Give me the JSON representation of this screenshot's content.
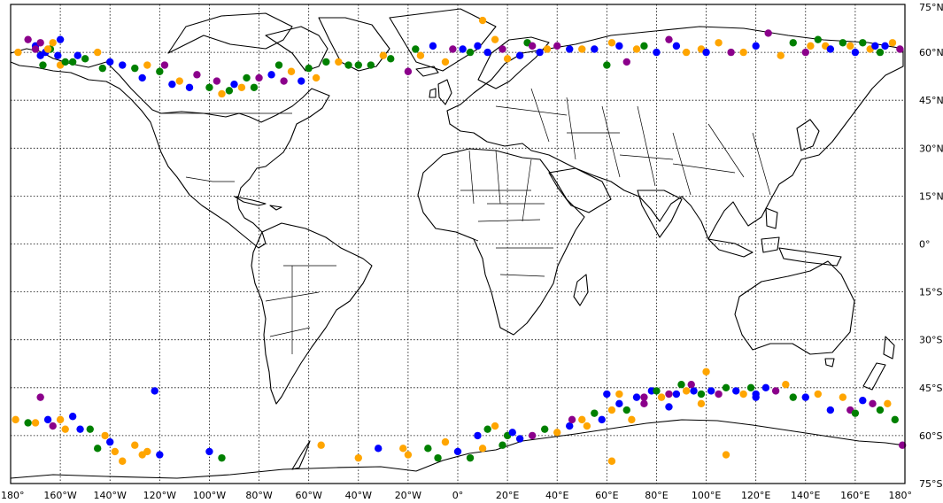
{
  "map": {
    "projection": "equirectangular",
    "lon_range": [
      -180,
      180
    ],
    "lat_range": [
      -75,
      75
    ],
    "x_ticks": [
      {
        "lon": -180,
        "label": "180°"
      },
      {
        "lon": -160,
        "label": "160°W"
      },
      {
        "lon": -140,
        "label": "140°W"
      },
      {
        "lon": -120,
        "label": "120°W"
      },
      {
        "lon": -100,
        "label": "100°W"
      },
      {
        "lon": -80,
        "label": "80°W"
      },
      {
        "lon": -60,
        "label": "60°W"
      },
      {
        "lon": -40,
        "label": "40°W"
      },
      {
        "lon": -20,
        "label": "20°W"
      },
      {
        "lon": 0,
        "label": "0°"
      },
      {
        "lon": 20,
        "label": "20°E"
      },
      {
        "lon": 40,
        "label": "40°E"
      },
      {
        "lon": 60,
        "label": "60°E"
      },
      {
        "lon": 80,
        "label": "80°E"
      },
      {
        "lon": 100,
        "label": "100°E"
      },
      {
        "lon": 120,
        "label": "120°E"
      },
      {
        "lon": 140,
        "label": "140°E"
      },
      {
        "lon": 160,
        "label": "160°E"
      },
      {
        "lon": 180,
        "label": "180°"
      }
    ],
    "y_ticks": [
      {
        "lat": 75,
        "label": "75°N"
      },
      {
        "lat": 60,
        "label": "60°N"
      },
      {
        "lat": 45,
        "label": "45°N"
      },
      {
        "lat": 30,
        "label": "30°N"
      },
      {
        "lat": 15,
        "label": "15°N"
      },
      {
        "lat": 0,
        "label": "0°"
      },
      {
        "lat": -15,
        "label": "15°S"
      },
      {
        "lat": -30,
        "label": "30°S"
      },
      {
        "lat": -45,
        "label": "45°S"
      },
      {
        "lat": -60,
        "label": "60°S"
      },
      {
        "lat": -75,
        "label": "75°S"
      }
    ],
    "grid_lons": [
      -160,
      -140,
      -120,
      -100,
      -80,
      -60,
      -40,
      -20,
      0,
      20,
      40,
      60,
      80,
      100,
      120,
      140,
      160
    ],
    "grid_lats": [
      60,
      45,
      30,
      15,
      0,
      -15,
      -30,
      -45,
      -60
    ],
    "point_colors": {
      "orange": "#ffa500",
      "blue": "#0000ff",
      "green": "#008000",
      "purple": "#8b008b"
    },
    "points": [
      [
        -177,
        60,
        "orange"
      ],
      [
        -173,
        64,
        "purple"
      ],
      [
        -170,
        62,
        "blue"
      ],
      [
        -168,
        63,
        "purple"
      ],
      [
        -166,
        60,
        "blue"
      ],
      [
        -164,
        61,
        "green"
      ],
      [
        -163,
        63,
        "orange"
      ],
      [
        -160,
        64,
        "blue"
      ],
      [
        -168,
        59,
        "blue"
      ],
      [
        -170,
        61,
        "purple"
      ],
      [
        -167,
        56,
        "green"
      ],
      [
        -165,
        61,
        "orange"
      ],
      [
        -161,
        59,
        "blue"
      ],
      [
        -160,
        56,
        "orange"
      ],
      [
        -158,
        57,
        "green"
      ],
      [
        -155,
        57,
        "green"
      ],
      [
        -153,
        59,
        "blue"
      ],
      [
        -150,
        58,
        "green"
      ],
      [
        -145,
        60,
        "orange"
      ],
      [
        -140,
        57,
        "blue"
      ],
      [
        -143,
        55,
        "green"
      ],
      [
        -135,
        56,
        "blue"
      ],
      [
        -130,
        55,
        "green"
      ],
      [
        -127,
        52,
        "blue"
      ],
      [
        -125,
        56,
        "orange"
      ],
      [
        -120,
        54,
        "green"
      ],
      [
        -118,
        56,
        "purple"
      ],
      [
        -115,
        50,
        "blue"
      ],
      [
        -112,
        51,
        "orange"
      ],
      [
        -108,
        49,
        "blue"
      ],
      [
        -105,
        53,
        "purple"
      ],
      [
        -100,
        49,
        "green"
      ],
      [
        -97,
        51,
        "purple"
      ],
      [
        -95,
        47,
        "orange"
      ],
      [
        -92,
        48,
        "green"
      ],
      [
        -90,
        50,
        "blue"
      ],
      [
        -87,
        49,
        "orange"
      ],
      [
        -85,
        52,
        "green"
      ],
      [
        -82,
        49,
        "green"
      ],
      [
        -80,
        52,
        "purple"
      ],
      [
        -75,
        53,
        "blue"
      ],
      [
        -72,
        56,
        "green"
      ],
      [
        -70,
        51,
        "purple"
      ],
      [
        -67,
        54,
        "orange"
      ],
      [
        -63,
        51,
        "blue"
      ],
      [
        -60,
        55,
        "green"
      ],
      [
        -57,
        52,
        "orange"
      ],
      [
        -53,
        57,
        "green"
      ],
      [
        -48,
        57,
        "orange"
      ],
      [
        -44,
        56,
        "green"
      ],
      [
        -40,
        56,
        "green"
      ],
      [
        -35,
        56,
        "green"
      ],
      [
        -30,
        59,
        "orange"
      ],
      [
        -27,
        58,
        "green"
      ],
      [
        -20,
        54,
        "purple"
      ],
      [
        -17,
        61,
        "green"
      ],
      [
        -15,
        59,
        "orange"
      ],
      [
        -10,
        62,
        "blue"
      ],
      [
        -5,
        57,
        "orange"
      ],
      [
        -2,
        61,
        "purple"
      ],
      [
        2,
        61,
        "blue"
      ],
      [
        5,
        60,
        "green"
      ],
      [
        8,
        62,
        "blue"
      ],
      [
        10,
        70,
        "orange"
      ],
      [
        12,
        60,
        "blue"
      ],
      [
        15,
        64,
        "orange"
      ],
      [
        18,
        61,
        "purple"
      ],
      [
        20,
        58,
        "orange"
      ],
      [
        25,
        59,
        "blue"
      ],
      [
        28,
        63,
        "green"
      ],
      [
        30,
        62,
        "purple"
      ],
      [
        33,
        60,
        "blue"
      ],
      [
        36,
        61,
        "orange"
      ],
      [
        40,
        62,
        "purple"
      ],
      [
        45,
        61,
        "blue"
      ],
      [
        50,
        61,
        "orange"
      ],
      [
        55,
        61,
        "blue"
      ],
      [
        60,
        56,
        "green"
      ],
      [
        62,
        63,
        "orange"
      ],
      [
        65,
        62,
        "blue"
      ],
      [
        68,
        57,
        "purple"
      ],
      [
        72,
        61,
        "orange"
      ],
      [
        75,
        62,
        "green"
      ],
      [
        80,
        60,
        "blue"
      ],
      [
        85,
        64,
        "purple"
      ],
      [
        88,
        62,
        "blue"
      ],
      [
        92,
        60,
        "orange"
      ],
      [
        98,
        61,
        "orange"
      ],
      [
        100,
        60,
        "blue"
      ],
      [
        105,
        63,
        "orange"
      ],
      [
        110,
        60,
        "purple"
      ],
      [
        115,
        60,
        "orange"
      ],
      [
        120,
        62,
        "blue"
      ],
      [
        125,
        66,
        "purple"
      ],
      [
        130,
        59,
        "orange"
      ],
      [
        135,
        63,
        "green"
      ],
      [
        140,
        60,
        "purple"
      ],
      [
        142,
        62,
        "orange"
      ],
      [
        145,
        64,
        "green"
      ],
      [
        148,
        62,
        "orange"
      ],
      [
        150,
        61,
        "blue"
      ],
      [
        155,
        63,
        "green"
      ],
      [
        158,
        62,
        "orange"
      ],
      [
        160,
        60,
        "blue"
      ],
      [
        163,
        63,
        "green"
      ],
      [
        166,
        61,
        "orange"
      ],
      [
        168,
        62,
        "blue"
      ],
      [
        170,
        60,
        "green"
      ],
      [
        172,
        62,
        "blue"
      ],
      [
        175,
        63,
        "orange"
      ],
      [
        178,
        61,
        "purple"
      ],
      [
        -178,
        -55,
        "orange"
      ],
      [
        -173,
        -56,
        "green"
      ],
      [
        -170,
        -56,
        "orange"
      ],
      [
        -168,
        -48,
        "purple"
      ],
      [
        -165,
        -55,
        "blue"
      ],
      [
        -163,
        -57,
        "purple"
      ],
      [
        -160,
        -55,
        "orange"
      ],
      [
        -158,
        -58,
        "orange"
      ],
      [
        -155,
        -54,
        "blue"
      ],
      [
        -152,
        -58,
        "blue"
      ],
      [
        -148,
        -58,
        "green"
      ],
      [
        -145,
        -64,
        "green"
      ],
      [
        -142,
        -60,
        "orange"
      ],
      [
        -140,
        -62,
        "blue"
      ],
      [
        -138,
        -65,
        "orange"
      ],
      [
        -135,
        -68,
        "orange"
      ],
      [
        -130,
        -63,
        "orange"
      ],
      [
        -127,
        -66,
        "orange"
      ],
      [
        -125,
        -65,
        "orange"
      ],
      [
        -122,
        -46,
        "blue"
      ],
      [
        -120,
        -66,
        "blue"
      ],
      [
        -100,
        -65,
        "blue"
      ],
      [
        -95,
        -67,
        "green"
      ],
      [
        -55,
        -63,
        "orange"
      ],
      [
        -40,
        -67,
        "orange"
      ],
      [
        -32,
        -64,
        "blue"
      ],
      [
        -20,
        -66,
        "orange"
      ],
      [
        -12,
        -64,
        "green"
      ],
      [
        -8,
        -67,
        "green"
      ],
      [
        -5,
        -62,
        "orange"
      ],
      [
        0,
        -65,
        "blue"
      ],
      [
        5,
        -67,
        "green"
      ],
      [
        8,
        -60,
        "blue"
      ],
      [
        12,
        -58,
        "green"
      ],
      [
        15,
        -57,
        "orange"
      ],
      [
        20,
        -60,
        "green"
      ],
      [
        25,
        -61,
        "blue"
      ],
      [
        30,
        -60,
        "purple"
      ],
      [
        35,
        -58,
        "green"
      ],
      [
        40,
        -59,
        "orange"
      ],
      [
        45,
        -57,
        "blue"
      ],
      [
        50,
        -55,
        "orange"
      ],
      [
        55,
        -53,
        "green"
      ],
      [
        58,
        -55,
        "blue"
      ],
      [
        60,
        -47,
        "blue"
      ],
      [
        62,
        -52,
        "orange"
      ],
      [
        65,
        -50,
        "blue"
      ],
      [
        68,
        -52,
        "green"
      ],
      [
        72,
        -48,
        "blue"
      ],
      [
        75,
        -50,
        "purple"
      ],
      [
        78,
        -46,
        "blue"
      ],
      [
        82,
        -48,
        "orange"
      ],
      [
        85,
        -47,
        "purple"
      ],
      [
        88,
        -47,
        "blue"
      ],
      [
        90,
        -44,
        "green"
      ],
      [
        92,
        -46,
        "orange"
      ],
      [
        95,
        -46,
        "blue"
      ],
      [
        98,
        -47,
        "green"
      ],
      [
        100,
        -40,
        "orange"
      ],
      [
        102,
        -46,
        "blue"
      ],
      [
        105,
        -47,
        "purple"
      ],
      [
        108,
        -45,
        "green"
      ],
      [
        112,
        -46,
        "blue"
      ],
      [
        115,
        -47,
        "orange"
      ],
      [
        118,
        -45,
        "green"
      ],
      [
        120,
        -47,
        "blue"
      ],
      [
        124,
        -45,
        "blue"
      ],
      [
        128,
        -46,
        "purple"
      ],
      [
        132,
        -44,
        "orange"
      ],
      [
        135,
        -48,
        "green"
      ],
      [
        140,
        -48,
        "blue"
      ],
      [
        145,
        -47,
        "orange"
      ],
      [
        150,
        -52,
        "blue"
      ],
      [
        155,
        -48,
        "orange"
      ],
      [
        158,
        -52,
        "purple"
      ],
      [
        160,
        -53,
        "green"
      ],
      [
        163,
        -49,
        "blue"
      ],
      [
        167,
        -50,
        "purple"
      ],
      [
        170,
        -52,
        "green"
      ],
      [
        173,
        -50,
        "orange"
      ],
      [
        176,
        -55,
        "green"
      ],
      [
        179,
        -63,
        "purple"
      ],
      [
        120,
        -48,
        "blue"
      ],
      [
        98,
        -50,
        "orange"
      ],
      [
        85,
        -51,
        "blue"
      ],
      [
        70,
        -55,
        "orange"
      ],
      [
        52,
        -57,
        "orange"
      ],
      [
        46,
        -55,
        "purple"
      ],
      [
        22,
        -59,
        "blue"
      ],
      [
        18,
        -63,
        "green"
      ],
      [
        10,
        -64,
        "orange"
      ],
      [
        -22,
        -64,
        "orange"
      ],
      [
        65,
        -47,
        "orange"
      ],
      [
        62,
        -68,
        "orange"
      ],
      [
        108,
        -66,
        "orange"
      ],
      [
        75,
        -48,
        "purple"
      ],
      [
        80,
        -46,
        "green"
      ],
      [
        94,
        -44,
        "purple"
      ]
    ]
  }
}
